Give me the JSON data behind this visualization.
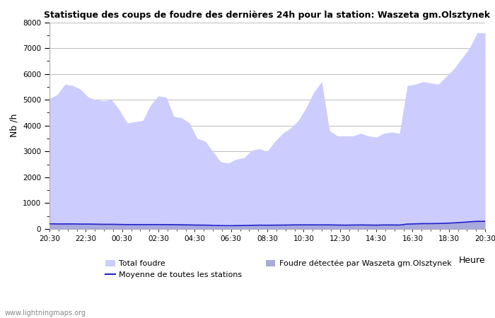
{
  "title": "Statistique des coups de foudre des dernières 24h pour la station: Waszeta gm.Olsztynek",
  "xlabel": "Heure",
  "ylabel": "Nb /h",
  "xtick_labels": [
    "20:30",
    "22:30",
    "00:30",
    "02:30",
    "04:30",
    "06:30",
    "08:30",
    "10:30",
    "12:30",
    "14:30",
    "16:30",
    "18:30",
    "20:30"
  ],
  "ylim": [
    0,
    8000
  ],
  "yticks": [
    0,
    1000,
    2000,
    3000,
    4000,
    5000,
    6000,
    7000,
    8000
  ],
  "fill_color_total": "#ccccff",
  "fill_color_station": "#aaaadd",
  "line_color_moyenne": "#2222cc",
  "background_color": "#ffffff",
  "grid_color": "#bbbbbb",
  "watermark": "www.lightningmaps.org",
  "legend": {
    "total_foudre": "Total foudre",
    "moyenne": "Moyenne de toutes les stations",
    "station": "Foudre détectée par Waszeta gm.Olsztynek"
  },
  "total_foudre": [
    5050,
    5200,
    5600,
    5550,
    5400,
    5100,
    5000,
    4950,
    5000,
    4600,
    4100,
    4150,
    4200,
    4800,
    5150,
    5100,
    4350,
    4300,
    4100,
    3500,
    3400,
    3000,
    2600,
    2550,
    2700,
    2750,
    3050,
    3100,
    3000,
    3400,
    3700,
    3900,
    4200,
    4700,
    5300,
    5700,
    3800,
    3600,
    3600,
    3600,
    3700,
    3600,
    3550,
    3700,
    3750,
    3700,
    5550,
    5600,
    5700,
    5650,
    5600,
    5900,
    6200,
    6600,
    7000,
    7600,
    7580
  ],
  "station_foudre": [
    200,
    200,
    200,
    200,
    200,
    200,
    200,
    200,
    200,
    200,
    200,
    200,
    200,
    200,
    200,
    200,
    200,
    200,
    200,
    150,
    150,
    130,
    110,
    100,
    130,
    140,
    150,
    160,
    150,
    160,
    160,
    170,
    175,
    175,
    175,
    175,
    175,
    160,
    155,
    160,
    165,
    160,
    155,
    165,
    165,
    160,
    200,
    210,
    220,
    220,
    225,
    235,
    250,
    270,
    290,
    310,
    310
  ],
  "moyenne_foudre": [
    200,
    195,
    195,
    195,
    190,
    190,
    185,
    180,
    180,
    175,
    170,
    170,
    170,
    170,
    170,
    168,
    165,
    160,
    155,
    150,
    148,
    140,
    130,
    125,
    130,
    135,
    140,
    148,
    145,
    148,
    150,
    155,
    158,
    158,
    158,
    158,
    158,
    152,
    148,
    152,
    156,
    152,
    148,
    155,
    156,
    152,
    190,
    198,
    208,
    208,
    212,
    222,
    235,
    255,
    275,
    295,
    295
  ]
}
